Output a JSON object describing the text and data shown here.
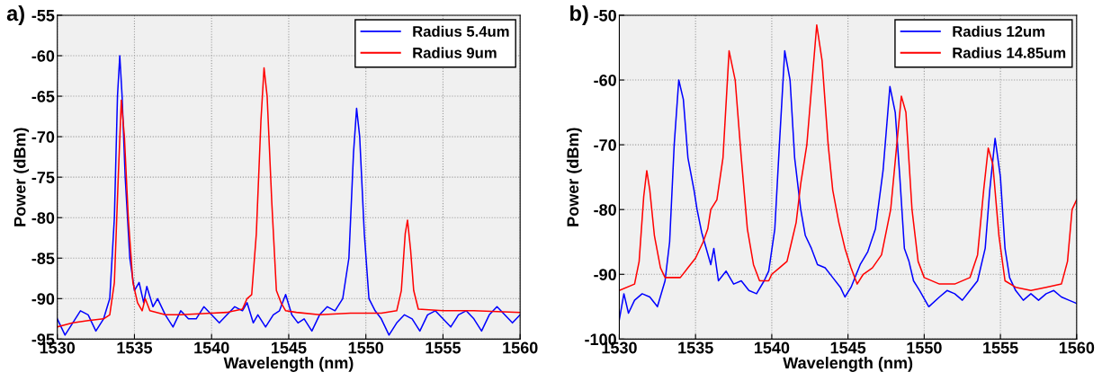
{
  "chart_data": [
    {
      "type": "line",
      "xlabel": "Wavelength (nm)",
      "ylabel": "Power (dBm)",
      "annotations": [
        "a)"
      ],
      "xlim": [
        1530,
        1560
      ],
      "ylim": [
        -95,
        -55
      ],
      "xticks": [
        1530,
        1535,
        1540,
        1545,
        1550,
        1555,
        1560
      ],
      "yticks": [
        -95,
        -90,
        -85,
        -80,
        -75,
        -70,
        -65,
        -60,
        -55
      ],
      "grid": true,
      "legend": "top right",
      "series": [
        {
          "name": "Radius 5.4um",
          "color": "#0000ff",
          "x": [
            1530,
            1530.5,
            1531,
            1531.5,
            1532,
            1532.5,
            1533,
            1533.4,
            1533.7,
            1533.9,
            1534.05,
            1534.2,
            1534.4,
            1534.7,
            1535,
            1535.3,
            1535.6,
            1535.8,
            1536.2,
            1536.5,
            1537,
            1537.5,
            1538,
            1538.5,
            1539,
            1539.5,
            1540,
            1540.5,
            1541,
            1541.5,
            1542,
            1542.3,
            1542.7,
            1543,
            1543.5,
            1544,
            1544.4,
            1544.8,
            1545.2,
            1545.6,
            1546,
            1546.5,
            1547,
            1547.5,
            1548,
            1548.5,
            1548.9,
            1549.2,
            1549.4,
            1549.6,
            1549.9,
            1550.2,
            1550.6,
            1551,
            1551.5,
            1552,
            1552.5,
            1553,
            1553.5,
            1554,
            1554.5,
            1555,
            1555.5,
            1556,
            1556.5,
            1557,
            1557.5,
            1558,
            1558.5,
            1559,
            1559.5,
            1560
          ],
          "values": [
            -92.5,
            -94.5,
            -93,
            -91.5,
            -92,
            -94,
            -92.5,
            -90,
            -80,
            -65,
            -60,
            -65,
            -75,
            -85,
            -89,
            -88,
            -90.5,
            -88.5,
            -91,
            -90,
            -92,
            -93.5,
            -91.5,
            -92.5,
            -92.5,
            -91,
            -92,
            -93,
            -92,
            -91,
            -91.5,
            -90.5,
            -93,
            -92,
            -93.5,
            -92,
            -91.5,
            -89.5,
            -92,
            -93,
            -92.5,
            -94,
            -92,
            -91,
            -91.5,
            -90,
            -85,
            -72,
            -66.5,
            -70,
            -82,
            -90,
            -91.5,
            -92.5,
            -94.5,
            -93,
            -92,
            -92.5,
            -94,
            -92,
            -91.5,
            -92.5,
            -93.5,
            -92,
            -91.5,
            -92.5,
            -94,
            -92,
            -91,
            -92,
            -93,
            -92
          ]
        },
        {
          "name": "Radius 9um",
          "color": "#ff0000",
          "x": [
            1530,
            1531,
            1532,
            1533,
            1533.4,
            1533.7,
            1533.95,
            1534.15,
            1534.35,
            1534.6,
            1534.9,
            1535.2,
            1535.5,
            1535.7,
            1536,
            1537,
            1538,
            1540,
            1541,
            1542,
            1542.3,
            1542.6,
            1542.9,
            1543.2,
            1543.4,
            1543.6,
            1543.9,
            1544.2,
            1544.5,
            1544.8,
            1545.5,
            1547,
            1549,
            1551,
            1552,
            1552.3,
            1552.55,
            1552.7,
            1552.9,
            1553.1,
            1553.4,
            1555,
            1557,
            1560
          ],
          "values": [
            -93.5,
            -93,
            -92.7,
            -92.5,
            -92,
            -88,
            -75,
            -65.5,
            -70,
            -80,
            -88,
            -90.5,
            -91.5,
            -90,
            -91.5,
            -92,
            -92,
            -91.8,
            -91.7,
            -91.3,
            -90,
            -89.5,
            -82,
            -68,
            -61.5,
            -65,
            -78,
            -89,
            -90.5,
            -91.5,
            -91.7,
            -92,
            -91.8,
            -91.8,
            -91.5,
            -89,
            -82,
            -80.3,
            -84,
            -89,
            -91.3,
            -91.5,
            -91.5,
            -91.7
          ]
        }
      ]
    },
    {
      "type": "line",
      "xlabel": "Wavelength (nm)",
      "ylabel": "Power (dBm)",
      "annotations": [
        "b)"
      ],
      "xlim": [
        1530,
        1560
      ],
      "ylim": [
        -100,
        -50
      ],
      "xticks": [
        1530,
        1535,
        1540,
        1545,
        1550,
        1555,
        1560
      ],
      "yticks": [
        -100,
        -90,
        -80,
        -70,
        -60,
        -50
      ],
      "grid": true,
      "legend": "top right",
      "series": [
        {
          "name": "Radius 12um",
          "color": "#0000ff",
          "x": [
            1530,
            1530.3,
            1530.6,
            1531,
            1531.5,
            1532,
            1532.5,
            1533,
            1533.3,
            1533.6,
            1533.9,
            1534.2,
            1534.5,
            1534.9,
            1535.1,
            1535.4,
            1535.7,
            1536,
            1536.2,
            1536.5,
            1537,
            1537.5,
            1538,
            1538.5,
            1539,
            1539.5,
            1539.8,
            1540.2,
            1540.5,
            1540.85,
            1541.2,
            1541.5,
            1541.9,
            1542.2,
            1542.6,
            1543,
            1543.5,
            1544,
            1544.5,
            1544.8,
            1545.2,
            1545.8,
            1546.3,
            1546.8,
            1547.3,
            1547.75,
            1548.1,
            1548.4,
            1548.7,
            1549,
            1549.3,
            1549.7,
            1550.3,
            1551,
            1551.5,
            1552,
            1552.5,
            1553,
            1553.5,
            1554,
            1554.3,
            1554.65,
            1555,
            1555.3,
            1555.6,
            1556,
            1556.5,
            1557,
            1557.5,
            1558,
            1558.5,
            1559,
            1559.5,
            1560
          ],
          "values": [
            -97,
            -93,
            -96,
            -94,
            -93,
            -93.5,
            -95,
            -91,
            -85,
            -70,
            -60,
            -63,
            -72,
            -77,
            -80,
            -83.5,
            -86,
            -88.5,
            -86,
            -91,
            -89.5,
            -91.5,
            -91,
            -92.5,
            -93,
            -91,
            -89.5,
            -83,
            -70,
            -55.5,
            -60,
            -72,
            -80,
            -84,
            -86,
            -88.5,
            -89,
            -90.5,
            -92,
            -93.5,
            -92,
            -88.5,
            -86.5,
            -83,
            -74,
            -61,
            -65,
            -75,
            -86,
            -88,
            -91,
            -92.5,
            -95,
            -93.5,
            -92.5,
            -93,
            -94,
            -92.5,
            -91,
            -86,
            -77,
            -69,
            -75,
            -86,
            -90.5,
            -92.5,
            -94,
            -93,
            -94,
            -93,
            -92.5,
            -93.5,
            -94,
            -94.5
          ]
        },
        {
          "name": "Radius 14.85um",
          "color": "#ff0000",
          "x": [
            1530,
            1531,
            1531.3,
            1531.6,
            1531.8,
            1532,
            1532.3,
            1532.7,
            1533,
            1534,
            1534.5,
            1535,
            1535.5,
            1535.8,
            1536,
            1536.4,
            1536.8,
            1537.2,
            1537.6,
            1538,
            1538.4,
            1538.8,
            1539.2,
            1539.8,
            1540,
            1540.5,
            1541,
            1541.3,
            1541.6,
            1541.9,
            1542.3,
            1542.95,
            1543.3,
            1543.7,
            1544,
            1544.4,
            1544.8,
            1545.2,
            1545.6,
            1546,
            1546.6,
            1547.2,
            1547.8,
            1548.2,
            1548.5,
            1548.8,
            1549.2,
            1549.6,
            1550,
            1551,
            1552,
            1553,
            1553.5,
            1553.9,
            1554.2,
            1554.5,
            1554.9,
            1555.3,
            1556,
            1557,
            1558,
            1559,
            1559.4,
            1559.7,
            1560
          ],
          "values": [
            -92.5,
            -91.5,
            -88,
            -78,
            -74,
            -77,
            -84,
            -89,
            -90.5,
            -90.5,
            -89,
            -87.5,
            -85,
            -83,
            -80,
            -78.5,
            -72,
            -55.5,
            -60,
            -72,
            -83,
            -88.5,
            -91,
            -91,
            -90,
            -89,
            -88,
            -85,
            -82,
            -76,
            -70,
            -51.5,
            -57,
            -70,
            -77,
            -82,
            -86,
            -89,
            -91.5,
            -90,
            -89,
            -87,
            -80,
            -70,
            -62.5,
            -65,
            -80,
            -88,
            -90.5,
            -91.5,
            -91.5,
            -90.5,
            -87,
            -77,
            -70.5,
            -73,
            -84,
            -91,
            -92,
            -92.5,
            -92,
            -91.5,
            -88,
            -80,
            -78.5
          ]
        }
      ]
    }
  ]
}
